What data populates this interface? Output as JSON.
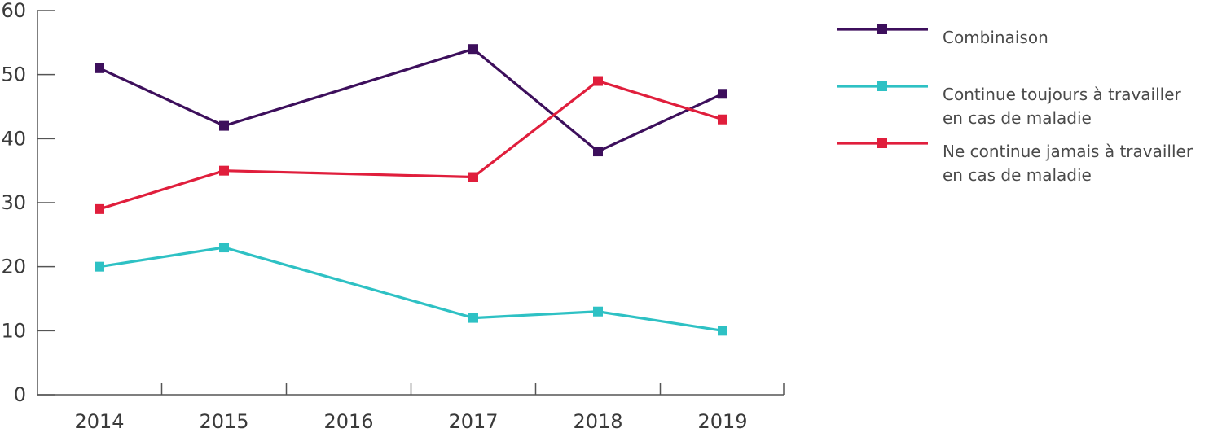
{
  "chart_data": {
    "type": "line",
    "x": [
      "2014",
      "2015",
      "2016",
      "2017",
      "2018",
      "2019"
    ],
    "ylim": [
      0,
      60
    ],
    "yticks": [
      0,
      10,
      20,
      30,
      40,
      50,
      60
    ],
    "legend_position": "right",
    "grid": false,
    "series": [
      {
        "name": "Combinaison",
        "color": "#3d0f5c",
        "points": [
          [
            "2014",
            51
          ],
          [
            "2015",
            42
          ],
          [
            "2017",
            54
          ],
          [
            "2018",
            38
          ],
          [
            "2019",
            47
          ]
        ]
      },
      {
        "name": "Continue toujours à travailler\nen cas de maladie",
        "color": "#2ec1c4",
        "points": [
          [
            "2014",
            20
          ],
          [
            "2015",
            23
          ],
          [
            "2017",
            12
          ],
          [
            "2018",
            13
          ],
          [
            "2019",
            10
          ]
        ]
      },
      {
        "name": "Ne continue jamais à travailler\nen cas de maladie",
        "color": "#e01e3c",
        "points": [
          [
            "2014",
            29
          ],
          [
            "2015",
            35
          ],
          [
            "2017",
            34
          ],
          [
            "2018",
            49
          ],
          [
            "2019",
            43
          ]
        ]
      }
    ]
  }
}
